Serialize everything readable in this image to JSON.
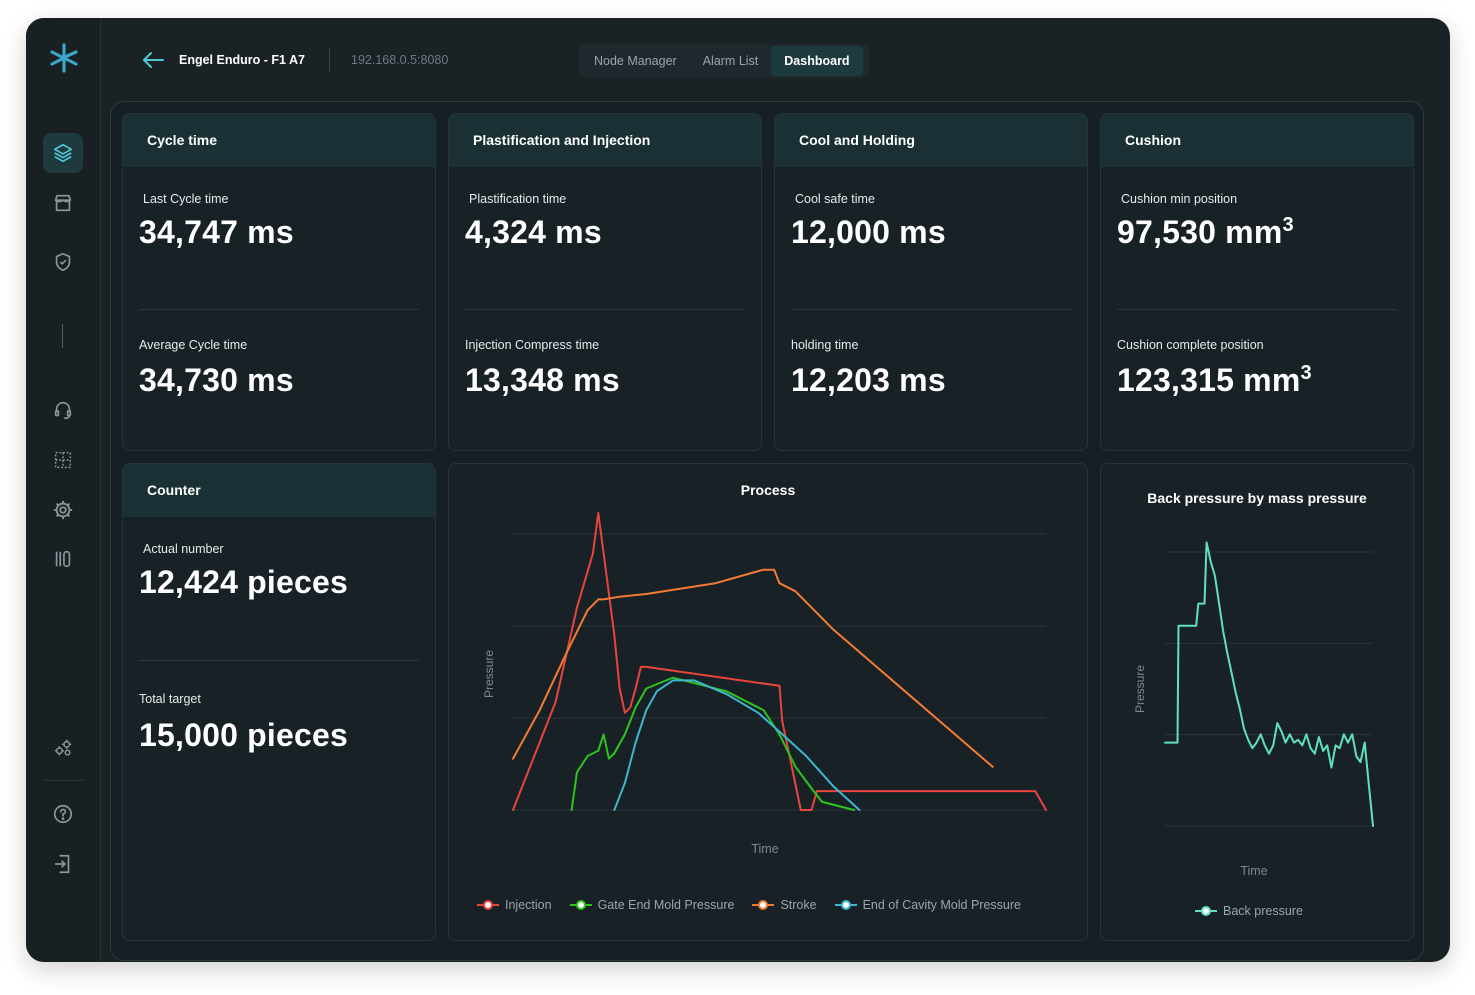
{
  "header": {
    "machine_name": "Engel Enduro - F1 A7",
    "ip_address": "192.168.0.5:8080",
    "tabs": [
      {
        "label": "Node Manager",
        "active": false
      },
      {
        "label": "Alarm List",
        "active": false
      },
      {
        "label": "Dashboard",
        "active": true
      }
    ]
  },
  "sidebar": {
    "icons": [
      "layers-icon",
      "store-icon",
      "shield-check-icon",
      "headset-icon",
      "grid-plus-icon",
      "gear-cog-icon",
      "library-icon",
      "users-cog-icon",
      "help-icon",
      "logout-icon"
    ]
  },
  "cards": {
    "cycle": {
      "title": "Cycle time",
      "m1_label": "Last Cycle time",
      "m1_value": "34,747 ms",
      "m2_label": "Average Cycle time",
      "m2_value": "34,730 ms"
    },
    "plast": {
      "title": "Plastification and Injection",
      "m1_label": "Plastification time",
      "m1_value": "4,324 ms",
      "m2_label": "Injection Compress time",
      "m2_value": "13,348 ms"
    },
    "cool": {
      "title": "Cool and Holding",
      "m1_label": "Cool safe time",
      "m1_value": "12,000 ms",
      "m2_label": "holding time",
      "m2_value": "12,203 ms"
    },
    "cushion": {
      "title": "Cushion",
      "m1_label": "Cushion min position",
      "m1_value": "97,530 mm",
      "m2_label": "Cushion complete position",
      "m2_value": "123,315 mm",
      "unit_sup": "3"
    },
    "counter": {
      "title": "Counter",
      "m1_label": "Actual number",
      "m1_value": "12,424 pieces",
      "m2_label": "Total target",
      "m2_value": "15,000 pieces"
    }
  },
  "chart_data": [
    {
      "type": "line",
      "title": "Process",
      "xlabel": "Time",
      "ylabel": "Pressure",
      "xlim": [
        0,
        100
      ],
      "ylim": [
        0,
        100
      ],
      "grid": true,
      "legend_position": "bottom",
      "series": [
        {
          "name": "Injection",
          "color": "#e8453c",
          "x": [
            0,
            8,
            12,
            15,
            16,
            19,
            20,
            21,
            22,
            23,
            24,
            25,
            50,
            50.5,
            54,
            56,
            57,
            60,
            98,
            100
          ],
          "y": [
            0,
            40,
            75,
            95,
            110,
            65,
            45,
            36,
            38,
            45,
            53,
            53,
            46,
            33,
            0,
            0,
            7,
            7,
            7,
            0
          ]
        },
        {
          "name": "Gate End Mold Pressure",
          "color": "#2ec31c",
          "x": [
            11,
            12,
            14,
            16,
            17,
            18,
            19,
            21,
            23,
            25,
            30,
            40,
            47,
            50,
            53,
            56,
            58,
            64
          ],
          "y": [
            0,
            14,
            20,
            22,
            28,
            19,
            21,
            28,
            38,
            45,
            49,
            44,
            37,
            28,
            16,
            8,
            3,
            0
          ]
        },
        {
          "name": "Stroke",
          "color": "#f47b35",
          "x": [
            0,
            5,
            10,
            14,
            16,
            17,
            20,
            25,
            38,
            47,
            49,
            50,
            53,
            60,
            70,
            80,
            90
          ],
          "y": [
            19,
            37,
            58,
            74,
            78,
            78,
            79,
            80,
            84,
            89,
            89,
            84,
            81,
            67,
            50,
            33,
            16
          ]
        },
        {
          "name": "End of Cavity Mold Pressure",
          "color": "#3fb6cf",
          "x": [
            19,
            21,
            23,
            25,
            27,
            30,
            34,
            40,
            46,
            50,
            55,
            60,
            65
          ],
          "y": [
            0,
            10,
            25,
            37,
            44,
            48,
            48,
            43,
            36,
            29,
            20,
            9,
            0
          ]
        }
      ]
    },
    {
      "type": "line",
      "title": "Back pressure by mass pressure",
      "xlabel": "Time",
      "ylabel": "Pressure",
      "xlim": [
        0,
        100
      ],
      "ylim": [
        0,
        100
      ],
      "grid": true,
      "legend_position": "bottom",
      "series": [
        {
          "name": "Back pressure",
          "color": "#5fe0c2",
          "x": [
            0,
            6,
            6.5,
            15,
            16,
            19,
            20,
            22,
            24,
            26,
            28,
            30,
            32,
            34,
            36,
            38,
            40,
            42,
            44,
            46,
            48,
            50,
            52,
            54,
            56,
            58,
            60,
            62,
            64,
            66,
            68,
            70,
            72,
            74,
            76,
            78,
            80,
            82,
            84,
            86,
            88,
            90,
            92,
            94,
            96,
            98,
            100
          ],
          "y": [
            30,
            30,
            72,
            72,
            80,
            80,
            102,
            95,
            90,
            80,
            70,
            62,
            55,
            48,
            42,
            35,
            31,
            28,
            30,
            33,
            29,
            26,
            29,
            37,
            34,
            30,
            33,
            30,
            31,
            29,
            33,
            28,
            26,
            32,
            27,
            29,
            21,
            29,
            28,
            33,
            30,
            33,
            25,
            23,
            30,
            15,
            0
          ]
        }
      ]
    }
  ]
}
